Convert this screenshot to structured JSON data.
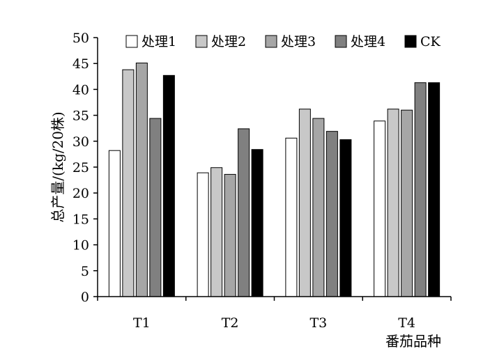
{
  "chart_data": {
    "type": "bar",
    "categories": [
      "T1",
      "T2",
      "T3",
      "T4"
    ],
    "series": [
      {
        "name": "处理1",
        "values": [
          28.2,
          23.9,
          30.6,
          33.9
        ],
        "color": "#ffffff"
      },
      {
        "name": "处理2",
        "values": [
          43.8,
          24.9,
          36.2,
          36.2
        ],
        "color": "#c8c8c8"
      },
      {
        "name": "处理3",
        "values": [
          45.1,
          23.6,
          34.4,
          36.0
        ],
        "color": "#a6a6a6"
      },
      {
        "name": "处理4",
        "values": [
          34.4,
          32.4,
          31.9,
          41.3
        ],
        "color": "#808080"
      },
      {
        "name": "CK",
        "values": [
          42.7,
          28.4,
          30.3,
          41.3
        ],
        "color": "#000000"
      }
    ],
    "xlabel": "番茄品种",
    "ylabel": "总产量/(kg/20株)",
    "ylim": [
      0,
      50
    ],
    "yticks": [
      0,
      5,
      10,
      15,
      20,
      25,
      30,
      35,
      40,
      45,
      50
    ],
    "grid": false,
    "legend": "top"
  }
}
